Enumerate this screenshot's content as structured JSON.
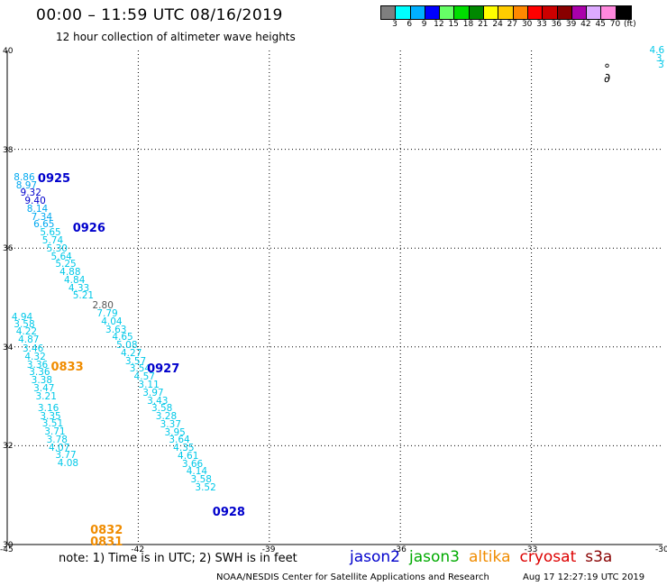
{
  "header": {
    "title": "00:00 – 11:59 UTC 08/16/2019",
    "subtitle": "12 hour collection of altimeter wave heights"
  },
  "colorbar": {
    "colors": [
      "#7f7f7f",
      "#00ffff",
      "#00b0ff",
      "#0000ff",
      "#66ff66",
      "#00dd00",
      "#008800",
      "#ffff00",
      "#ffcc00",
      "#ff8800",
      "#ff0000",
      "#cc0000",
      "#880000",
      "#aa00aa",
      "#ddaaff",
      "#ff88dd",
      "#000000"
    ],
    "labels": [
      "3",
      "6",
      "9",
      "12",
      "15",
      "18",
      "21",
      "24",
      "27",
      "30",
      "33",
      "36",
      "39",
      "42",
      "45",
      "70",
      "(ft)"
    ]
  },
  "chart_data": {
    "type": "scatter",
    "xlim": [
      -45,
      -30
    ],
    "ylim": [
      30,
      40
    ],
    "x_ticks": [
      "-45",
      "-42",
      "-39",
      "-36",
      "-33",
      "-30"
    ],
    "y_ticks": [
      "40",
      "38",
      "36",
      "34",
      "32",
      "30"
    ],
    "grid": true,
    "tracks": [
      {
        "name": "jason2",
        "times": [
          {
            "label": "0925",
            "lon": -44.3,
            "lat": 37.4,
            "color": "#0000cc"
          },
          {
            "label": "0926",
            "lon": -43.5,
            "lat": 36.4,
            "color": "#0000cc"
          },
          {
            "label": "0927",
            "lon": -41.8,
            "lat": 33.55,
            "color": "#0000cc"
          },
          {
            "label": "0928",
            "lon": -40.3,
            "lat": 30.65,
            "color": "#0000cc"
          }
        ],
        "points": [
          {
            "lon": -44.85,
            "lat": 37.43,
            "swh": "8.86",
            "color": "#00a8f0"
          },
          {
            "lon": -44.8,
            "lat": 37.27,
            "swh": "8.97",
            "color": "#00a8f0"
          },
          {
            "lon": -44.7,
            "lat": 37.11,
            "swh": "9.32",
            "color": "#0000cc"
          },
          {
            "lon": -44.6,
            "lat": 36.95,
            "swh": "9.40",
            "color": "#0000cc"
          },
          {
            "lon": -44.55,
            "lat": 36.79,
            "swh": "8.14",
            "color": "#00a8f0"
          },
          {
            "lon": -44.45,
            "lat": 36.63,
            "swh": "7.34",
            "color": "#00a8f0"
          },
          {
            "lon": -44.4,
            "lat": 36.47,
            "swh": "6.65",
            "color": "#00a8f0"
          },
          {
            "lon": -44.25,
            "lat": 36.31,
            "swh": "5.65",
            "color": "#00c8e8"
          },
          {
            "lon": -44.2,
            "lat": 36.15,
            "swh": "5.74",
            "color": "#00c8e8"
          },
          {
            "lon": -44.1,
            "lat": 35.99,
            "swh": "5.30",
            "color": "#00c8e8"
          },
          {
            "lon": -44.0,
            "lat": 35.83,
            "swh": "5.64",
            "color": "#00c8e8"
          },
          {
            "lon": -43.9,
            "lat": 35.67,
            "swh": "5.25",
            "color": "#00c8e8"
          },
          {
            "lon": -43.8,
            "lat": 35.51,
            "swh": "4.88",
            "color": "#00c8e8"
          },
          {
            "lon": -43.7,
            "lat": 35.35,
            "swh": "4.84",
            "color": "#00c8e8"
          },
          {
            "lon": -43.6,
            "lat": 35.19,
            "swh": "4.33",
            "color": "#00c8e8"
          },
          {
            "lon": -43.5,
            "lat": 35.03,
            "swh": "5.21",
            "color": "#00c8e8"
          },
          {
            "lon": -43.05,
            "lat": 34.83,
            "swh": "2.80",
            "color": "#555555"
          },
          {
            "lon": -42.95,
            "lat": 34.67,
            "swh": "7.79",
            "color": "#00c8e8"
          },
          {
            "lon": -42.85,
            "lat": 34.51,
            "swh": "4.04",
            "color": "#00c8e8"
          },
          {
            "lon": -42.75,
            "lat": 34.35,
            "swh": "3.63",
            "color": "#00c8e8"
          },
          {
            "lon": -42.6,
            "lat": 34.19,
            "swh": "4.65",
            "color": "#00c8e8"
          },
          {
            "lon": -42.5,
            "lat": 34.03,
            "swh": "5.08",
            "color": "#00c8e8"
          },
          {
            "lon": -42.4,
            "lat": 33.87,
            "swh": "4.27",
            "color": "#00c8e8"
          },
          {
            "lon": -42.3,
            "lat": 33.71,
            "swh": "3.57",
            "color": "#00c8e8"
          },
          {
            "lon": -42.2,
            "lat": 33.55,
            "swh": "3.54",
            "color": "#00c8e8"
          },
          {
            "lon": -42.1,
            "lat": 33.39,
            "swh": "4.57",
            "color": "#00c8e8"
          },
          {
            "lon": -42.0,
            "lat": 33.23,
            "swh": "3.11",
            "color": "#00c8e8"
          },
          {
            "lon": -41.9,
            "lat": 33.07,
            "swh": "3.97",
            "color": "#00c8e8"
          },
          {
            "lon": -41.8,
            "lat": 32.91,
            "swh": "3.43",
            "color": "#00c8e8"
          },
          {
            "lon": -41.7,
            "lat": 32.75,
            "swh": "3.58",
            "color": "#00c8e8"
          },
          {
            "lon": -41.6,
            "lat": 32.59,
            "swh": "3.28",
            "color": "#00c8e8"
          },
          {
            "lon": -41.5,
            "lat": 32.43,
            "swh": "3.37",
            "color": "#00c8e8"
          },
          {
            "lon": -41.4,
            "lat": 32.27,
            "swh": "3.95",
            "color": "#00c8e8"
          },
          {
            "lon": -41.3,
            "lat": 32.11,
            "swh": "3.64",
            "color": "#00c8e8"
          },
          {
            "lon": -41.2,
            "lat": 31.95,
            "swh": "4.35",
            "color": "#00c8e8"
          },
          {
            "lon": -41.1,
            "lat": 31.79,
            "swh": "4.61",
            "color": "#00c8e8"
          },
          {
            "lon": -41.0,
            "lat": 31.63,
            "swh": "3.66",
            "color": "#00c8e8"
          },
          {
            "lon": -40.9,
            "lat": 31.47,
            "swh": "4.14",
            "color": "#00c8e8"
          },
          {
            "lon": -40.8,
            "lat": 31.31,
            "swh": "3.58",
            "color": "#00c8e8"
          },
          {
            "lon": -40.7,
            "lat": 31.15,
            "swh": "3.52",
            "color": "#00c8e8"
          }
        ]
      },
      {
        "name": "altika",
        "times": [
          {
            "label": "0833",
            "lon": -44.0,
            "lat": 33.6,
            "color": "#f08c00"
          },
          {
            "lon": -43.1,
            "lat": 30.3,
            "label": "0832",
            "color": "#f08c00"
          },
          {
            "lon": -43.1,
            "lat": 30.05,
            "label": "0831",
            "color": "#f08c00"
          }
        ],
        "points": [
          {
            "lon": -44.9,
            "lat": 34.6,
            "swh": "4.94",
            "color": "#00c8e8"
          },
          {
            "lon": -44.85,
            "lat": 34.45,
            "swh": "3.58",
            "color": "#00c8e8"
          },
          {
            "lon": -44.8,
            "lat": 34.3,
            "swh": "4.22",
            "color": "#00c8e8"
          },
          {
            "lon": -44.75,
            "lat": 34.15,
            "swh": "4.87",
            "color": "#00c8e8"
          },
          {
            "lon": -44.65,
            "lat": 33.96,
            "swh": "3.46",
            "color": "#00c8e8"
          },
          {
            "lon": -44.6,
            "lat": 33.8,
            "swh": "4.32",
            "color": "#00c8e8"
          },
          {
            "lon": -44.55,
            "lat": 33.64,
            "swh": "3.36",
            "color": "#00c8e8"
          },
          {
            "lon": -44.5,
            "lat": 33.48,
            "swh": "3.36",
            "color": "#00c8e8"
          },
          {
            "lon": -44.45,
            "lat": 33.32,
            "swh": "3.38",
            "color": "#00c8e8"
          },
          {
            "lon": -44.4,
            "lat": 33.16,
            "swh": "3.47",
            "color": "#00c8e8"
          },
          {
            "lon": -44.35,
            "lat": 33.0,
            "swh": "3.21",
            "color": "#00c8e8"
          },
          {
            "lon": -44.3,
            "lat": 32.76,
            "swh": "3.16",
            "color": "#00c8e8"
          },
          {
            "lon": -44.25,
            "lat": 32.6,
            "swh": "3.35",
            "color": "#00c8e8"
          },
          {
            "lon": -44.2,
            "lat": 32.44,
            "swh": "3.51",
            "color": "#00c8e8"
          },
          {
            "lon": -44.15,
            "lat": 32.28,
            "swh": "3.71",
            "color": "#00c8e8"
          },
          {
            "lon": -44.1,
            "lat": 32.12,
            "swh": "3.78",
            "color": "#00c8e8"
          },
          {
            "lon": -44.05,
            "lat": 31.96,
            "swh": "4.07",
            "color": "#00c8e8"
          },
          {
            "lon": -43.9,
            "lat": 31.8,
            "swh": "3.77",
            "color": "#00c8e8"
          },
          {
            "lon": -43.85,
            "lat": 31.64,
            "swh": "4.08",
            "color": "#00c8e8"
          }
        ]
      },
      {
        "name": "edge",
        "times": [],
        "points": [
          {
            "lon": -30.3,
            "lat": 40.0,
            "swh": "4.6",
            "color": "#00c8e8"
          },
          {
            "lon": -30.15,
            "lat": 39.84,
            "swh": "3.",
            "color": "#00c8e8"
          },
          {
            "lon": -30.1,
            "lat": 39.7,
            "swh": "3",
            "color": "#00c8e8"
          }
        ]
      }
    ]
  },
  "map": {
    "island_label": "°\n∂"
  },
  "note": "note:  1) Time is in UTC;  2) SWH is in feet",
  "legend": [
    {
      "name": "jason2",
      "color": "#0000cc"
    },
    {
      "name": "jason3",
      "color": "#00aa00"
    },
    {
      "name": "altika",
      "color": "#f08c00"
    },
    {
      "name": "cryosat",
      "color": "#dd0000"
    },
    {
      "name": "s3a",
      "color": "#880000"
    }
  ],
  "footer": {
    "credit": "NOAA/NESDIS Center for Satellite Applications and Research",
    "generated": "Aug 17 12:27:19 UTC 2019"
  }
}
